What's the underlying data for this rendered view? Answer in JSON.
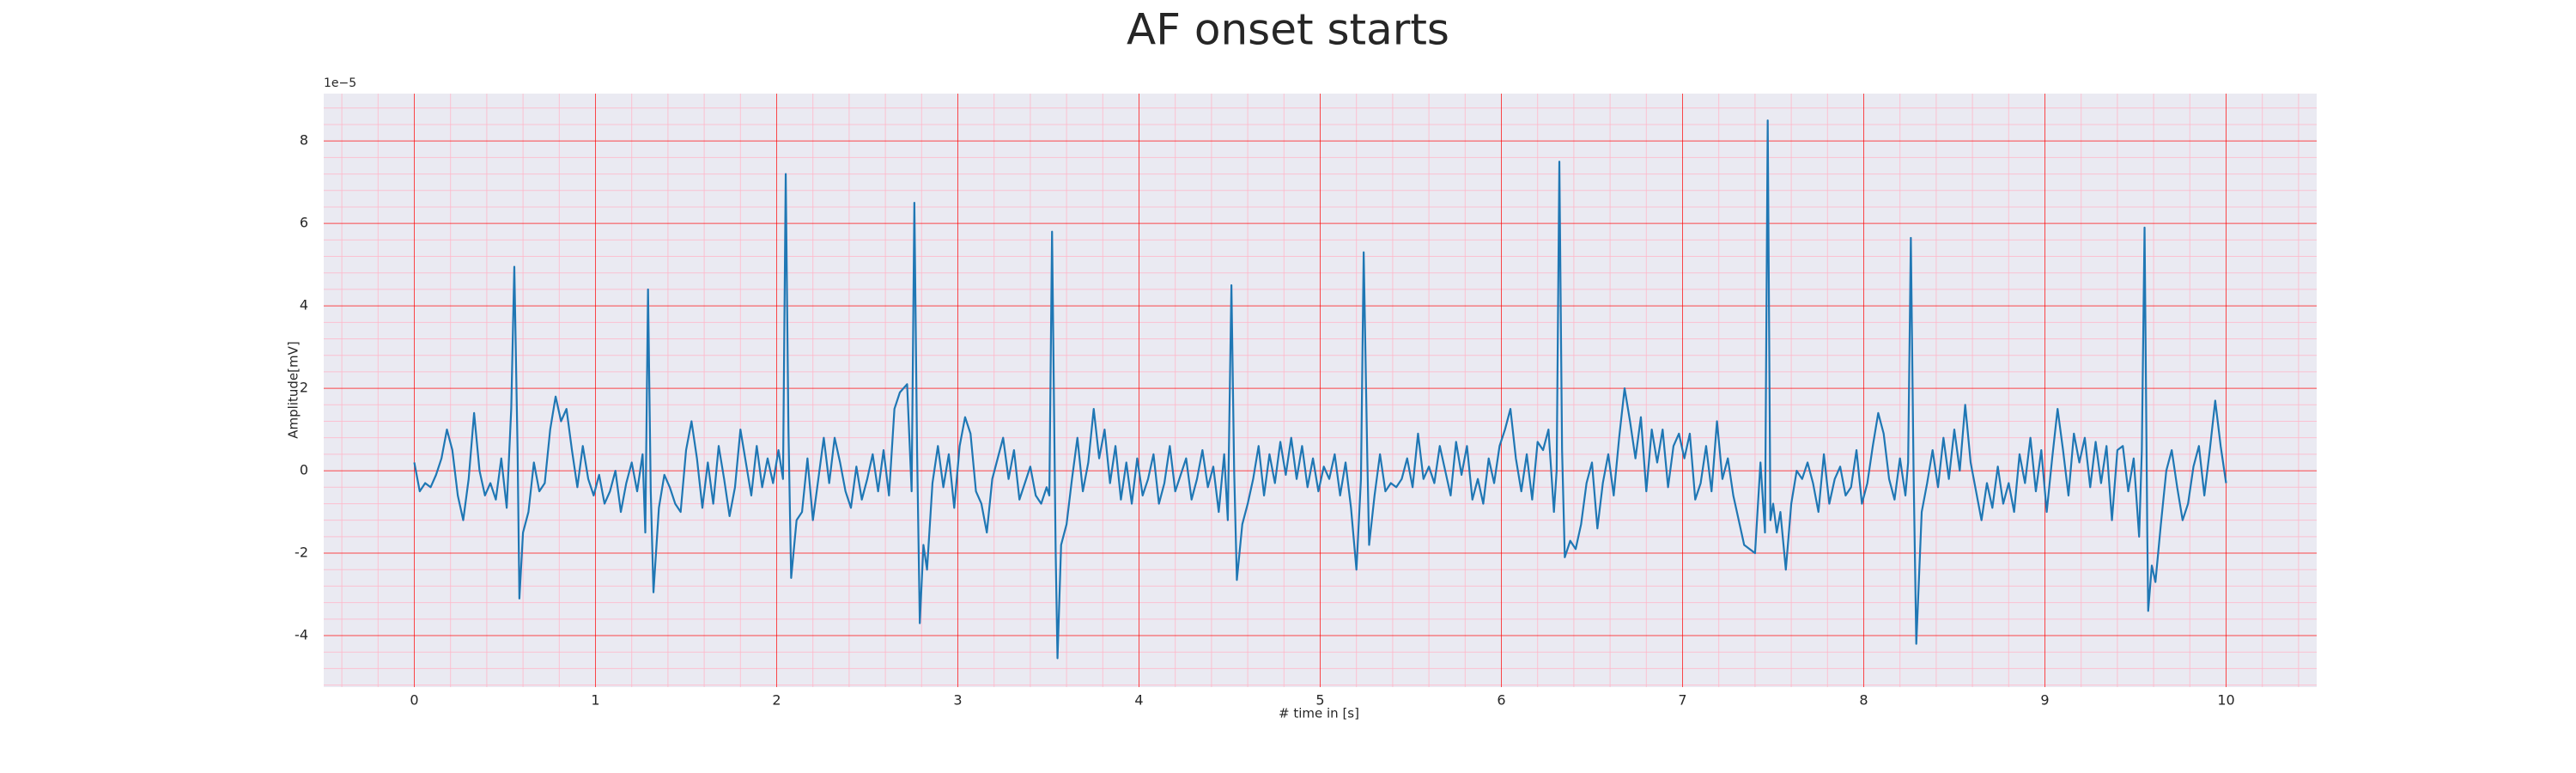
{
  "chart_data": {
    "type": "line",
    "title": "AF onset starts",
    "xlabel": "# time in [s]",
    "ylabel": "Amplitude[mV]",
    "y_offset_label": "1e−5",
    "color": "#1f77b4",
    "background": "#eaeaf2",
    "grid": true,
    "grid_color": "#ff0000",
    "minor_grid": true,
    "minor_grid_color": "#ffb6c8",
    "xlim": [
      -0.5,
      10.5
    ],
    "xticks": [
      0,
      1,
      2,
      3,
      4,
      5,
      6,
      7,
      8,
      9,
      10
    ],
    "ylim": [
      -5.25,
      9.15
    ],
    "yticks": [
      -4,
      -2,
      0,
      2,
      4,
      6,
      8
    ],
    "xminorticks": [
      -0.4,
      -0.2,
      0.2,
      0.4,
      0.6,
      0.8,
      1.2,
      1.4,
      1.6,
      1.8,
      2.2,
      2.4,
      2.6,
      2.8,
      3.2,
      3.4,
      3.6,
      3.8,
      4.2,
      4.4,
      4.6,
      4.8,
      5.2,
      5.4,
      5.6,
      5.8,
      6.2,
      6.4,
      6.6,
      6.8,
      7.2,
      7.4,
      7.6,
      7.8,
      8.2,
      8.4,
      8.6,
      8.8,
      9.2,
      9.4,
      9.6,
      9.8,
      10.2,
      10.4
    ],
    "yminorticks": [
      -5.2,
      -4.8,
      -4.4,
      -3.6,
      -3.2,
      -2.8,
      -2.4,
      -1.6,
      -1.2,
      -0.8,
      -0.4,
      0.4,
      0.8,
      1.2,
      1.6,
      2.4,
      2.8,
      3.2,
      3.6,
      4.4,
      4.8,
      5.2,
      5.6,
      6.4,
      6.8,
      7.2,
      7.6,
      8.4,
      8.8
    ],
    "x": [
      0,
      0.03,
      0.06,
      0.09,
      0.12,
      0.15,
      0.18,
      0.21,
      0.24,
      0.27,
      0.3,
      0.33,
      0.36,
      0.39,
      0.42,
      0.45,
      0.48,
      0.51,
      0.535,
      0.552,
      0.57,
      0.58,
      0.6,
      0.63,
      0.66,
      0.69,
      0.72,
      0.75,
      0.78,
      0.81,
      0.84,
      0.87,
      0.9,
      0.93,
      0.96,
      0.99,
      1.02,
      1.05,
      1.08,
      1.11,
      1.14,
      1.17,
      1.2,
      1.23,
      1.26,
      1.275,
      1.29,
      1.305,
      1.32,
      1.35,
      1.38,
      1.41,
      1.44,
      1.47,
      1.5,
      1.53,
      1.56,
      1.59,
      1.62,
      1.65,
      1.68,
      1.71,
      1.74,
      1.77,
      1.8,
      1.83,
      1.86,
      1.89,
      1.92,
      1.95,
      1.98,
      2.01,
      2.035,
      2.05,
      2.065,
      2.08,
      2.11,
      2.14,
      2.17,
      2.2,
      2.23,
      2.26,
      2.29,
      2.32,
      2.35,
      2.38,
      2.41,
      2.44,
      2.47,
      2.5,
      2.53,
      2.56,
      2.59,
      2.62,
      2.65,
      2.68,
      2.72,
      2.745,
      2.76,
      2.775,
      2.79,
      2.81,
      2.83,
      2.86,
      2.89,
      2.92,
      2.95,
      2.98,
      3.01,
      3.04,
      3.07,
      3.1,
      3.13,
      3.16,
      3.19,
      3.22,
      3.25,
      3.28,
      3.31,
      3.34,
      3.37,
      3.4,
      3.43,
      3.46,
      3.49,
      3.505,
      3.52,
      3.54,
      3.55,
      3.57,
      3.6,
      3.63,
      3.66,
      3.69,
      3.72,
      3.75,
      3.78,
      3.81,
      3.84,
      3.87,
      3.9,
      3.93,
      3.96,
      3.99,
      4.02,
      4.05,
      4.08,
      4.11,
      4.14,
      4.17,
      4.2,
      4.23,
      4.26,
      4.29,
      4.32,
      4.35,
      4.38,
      4.41,
      4.44,
      4.47,
      4.49,
      4.51,
      4.525,
      4.54,
      4.57,
      4.6,
      4.63,
      4.66,
      4.69,
      4.72,
      4.75,
      4.78,
      4.81,
      4.84,
      4.87,
      4.9,
      4.93,
      4.96,
      4.99,
      5.02,
      5.05,
      5.08,
      5.11,
      5.14,
      5.17,
      5.2,
      5.225,
      5.24,
      5.26,
      5.27,
      5.3,
      5.33,
      5.36,
      5.39,
      5.42,
      5.45,
      5.48,
      5.51,
      5.54,
      5.57,
      5.6,
      5.63,
      5.66,
      5.69,
      5.72,
      5.75,
      5.78,
      5.81,
      5.84,
      5.87,
      5.9,
      5.93,
      5.96,
      5.99,
      6.02,
      6.05,
      6.08,
      6.11,
      6.14,
      6.17,
      6.2,
      6.23,
      6.26,
      6.29,
      6.305,
      6.32,
      6.335,
      6.35,
      6.38,
      6.41,
      6.44,
      6.47,
      6.5,
      6.53,
      6.56,
      6.59,
      6.62,
      6.65,
      6.68,
      6.71,
      6.74,
      6.77,
      6.8,
      6.83,
      6.86,
      6.89,
      6.92,
      6.95,
      6.98,
      7.01,
      7.04,
      7.07,
      7.1,
      7.13,
      7.16,
      7.19,
      7.22,
      7.25,
      7.28,
      7.31,
      7.34,
      7.37,
      7.4,
      7.43,
      7.455,
      7.47,
      7.485,
      7.5,
      7.52,
      7.54,
      7.57,
      7.6,
      7.63,
      7.66,
      7.69,
      7.72,
      7.75,
      7.78,
      7.81,
      7.84,
      7.87,
      7.9,
      7.93,
      7.96,
      7.99,
      8.02,
      8.05,
      8.08,
      8.11,
      8.14,
      8.17,
      8.2,
      8.23,
      8.245,
      8.26,
      8.275,
      8.29,
      8.32,
      8.35,
      8.38,
      8.41,
      8.44,
      8.47,
      8.5,
      8.53,
      8.56,
      8.59,
      8.62,
      8.65,
      8.68,
      8.71,
      8.74,
      8.77,
      8.8,
      8.83,
      8.86,
      8.89,
      8.92,
      8.95,
      8.98,
      9.01,
      9.04,
      9.07,
      9.1,
      9.13,
      9.16,
      9.19,
      9.22,
      9.25,
      9.28,
      9.31,
      9.34,
      9.37,
      9.4,
      9.43,
      9.46,
      9.49,
      9.52,
      9.535,
      9.55,
      9.565,
      9.57,
      9.59,
      9.61,
      9.64,
      9.67,
      9.7,
      9.73,
      9.76,
      9.79,
      9.82,
      9.85,
      9.88,
      9.91,
      9.94,
      9.97,
      10
    ],
    "values": [
      0.2,
      -0.5,
      -0.3,
      -0.4,
      -0.1,
      0.3,
      1.0,
      0.5,
      -0.6,
      -1.2,
      -0.2,
      1.4,
      0.0,
      -0.6,
      -0.3,
      -0.7,
      0.3,
      -0.9,
      1.5,
      4.95,
      0.5,
      -3.1,
      -1.5,
      -1.0,
      0.2,
      -0.5,
      -0.3,
      1.0,
      1.8,
      1.2,
      1.5,
      0.5,
      -0.4,
      0.6,
      -0.2,
      -0.6,
      -0.1,
      -0.8,
      -0.5,
      0.0,
      -1.0,
      -0.3,
      0.2,
      -0.5,
      0.4,
      -1.5,
      4.4,
      -0.5,
      -2.95,
      -0.9,
      -0.1,
      -0.4,
      -0.8,
      -1.0,
      0.5,
      1.2,
      0.3,
      -0.9,
      0.2,
      -0.8,
      0.6,
      -0.2,
      -1.1,
      -0.4,
      1.0,
      0.2,
      -0.6,
      0.6,
      -0.4,
      0.3,
      -0.3,
      0.5,
      -0.2,
      7.2,
      1.0,
      -2.6,
      -1.2,
      -1.0,
      0.3,
      -1.2,
      -0.2,
      0.8,
      -0.3,
      0.8,
      0.2,
      -0.5,
      -0.9,
      0.1,
      -0.7,
      -0.2,
      0.4,
      -0.5,
      0.5,
      -0.6,
      1.5,
      1.9,
      2.1,
      -0.5,
      6.5,
      0.5,
      -3.7,
      -1.8,
      -2.4,
      -0.3,
      0.6,
      -0.4,
      0.4,
      -0.9,
      0.6,
      1.3,
      0.9,
      -0.5,
      -0.8,
      -1.5,
      -0.2,
      0.3,
      0.8,
      -0.2,
      0.5,
      -0.7,
      -0.3,
      0.1,
      -0.6,
      -0.8,
      -0.4,
      -0.6,
      5.8,
      -2.0,
      -4.55,
      -1.8,
      -1.3,
      -0.2,
      0.8,
      -0.5,
      0.2,
      1.5,
      0.3,
      1.0,
      -0.3,
      0.6,
      -0.7,
      0.2,
      -0.8,
      0.3,
      -0.6,
      -0.2,
      0.4,
      -0.8,
      -0.3,
      0.6,
      -0.5,
      -0.1,
      0.3,
      -0.7,
      -0.2,
      0.5,
      -0.4,
      0.1,
      -1.0,
      0.4,
      -1.2,
      4.5,
      0.0,
      -2.65,
      -1.3,
      -0.8,
      -0.2,
      0.6,
      -0.6,
      0.4,
      -0.3,
      0.7,
      -0.1,
      0.8,
      -0.2,
      0.6,
      -0.4,
      0.3,
      -0.5,
      0.1,
      -0.2,
      0.4,
      -0.6,
      0.2,
      -0.9,
      -2.4,
      -0.2,
      5.3,
      0.3,
      -1.8,
      -0.6,
      0.4,
      -0.5,
      -0.3,
      -0.4,
      -0.2,
      0.3,
      -0.4,
      0.9,
      -0.2,
      0.1,
      -0.3,
      0.6,
      0.0,
      -0.6,
      0.7,
      -0.1,
      0.6,
      -0.7,
      -0.2,
      -0.8,
      0.3,
      -0.3,
      0.6,
      1.0,
      1.5,
      0.3,
      -0.5,
      0.4,
      -0.7,
      0.7,
      0.5,
      1.0,
      -1.0,
      0.0,
      7.5,
      0.5,
      -2.1,
      -1.7,
      -1.9,
      -1.3,
      -0.3,
      0.2,
      -1.4,
      -0.3,
      0.4,
      -0.6,
      0.8,
      2.0,
      1.2,
      0.3,
      1.3,
      -0.5,
      1.0,
      0.2,
      1.0,
      -0.4,
      0.6,
      0.9,
      0.3,
      0.9,
      -0.7,
      -0.3,
      0.6,
      -0.5,
      1.2,
      -0.2,
      0.3,
      -0.6,
      -1.2,
      -1.8,
      -1.9,
      -2.0,
      0.2,
      -1.5,
      8.5,
      -1.2,
      -0.8,
      -1.5,
      -1.0,
      -2.4,
      -0.8,
      0.0,
      -0.2,
      0.2,
      -0.3,
      -1.0,
      0.4,
      -0.8,
      -0.2,
      0.1,
      -0.6,
      -0.4,
      0.5,
      -0.8,
      -0.3,
      0.6,
      1.4,
      0.9,
      -0.2,
      -0.7,
      0.3,
      -0.6,
      0.2,
      5.65,
      0.0,
      -4.2,
      -1.0,
      -0.3,
      0.5,
      -0.4,
      0.8,
      -0.2,
      1.0,
      0.0,
      1.6,
      0.2,
      -0.5,
      -1.2,
      -0.3,
      -0.9,
      0.1,
      -0.8,
      -0.3,
      -1.0,
      0.4,
      -0.3,
      0.8,
      -0.5,
      0.5,
      -1.0,
      0.3,
      1.5,
      0.5,
      -0.6,
      0.9,
      0.2,
      0.8,
      -0.4,
      0.7,
      -0.3,
      0.6,
      -1.2,
      0.5,
      0.6,
      -0.5,
      0.3,
      -1.6,
      0.5,
      5.9,
      -1.5,
      -3.4,
      -2.3,
      -2.7,
      -1.3,
      0.0,
      0.5,
      -0.4,
      -1.2,
      -0.8,
      0.1,
      0.6,
      -0.6,
      0.5,
      1.7,
      0.6,
      -0.3
    ]
  }
}
